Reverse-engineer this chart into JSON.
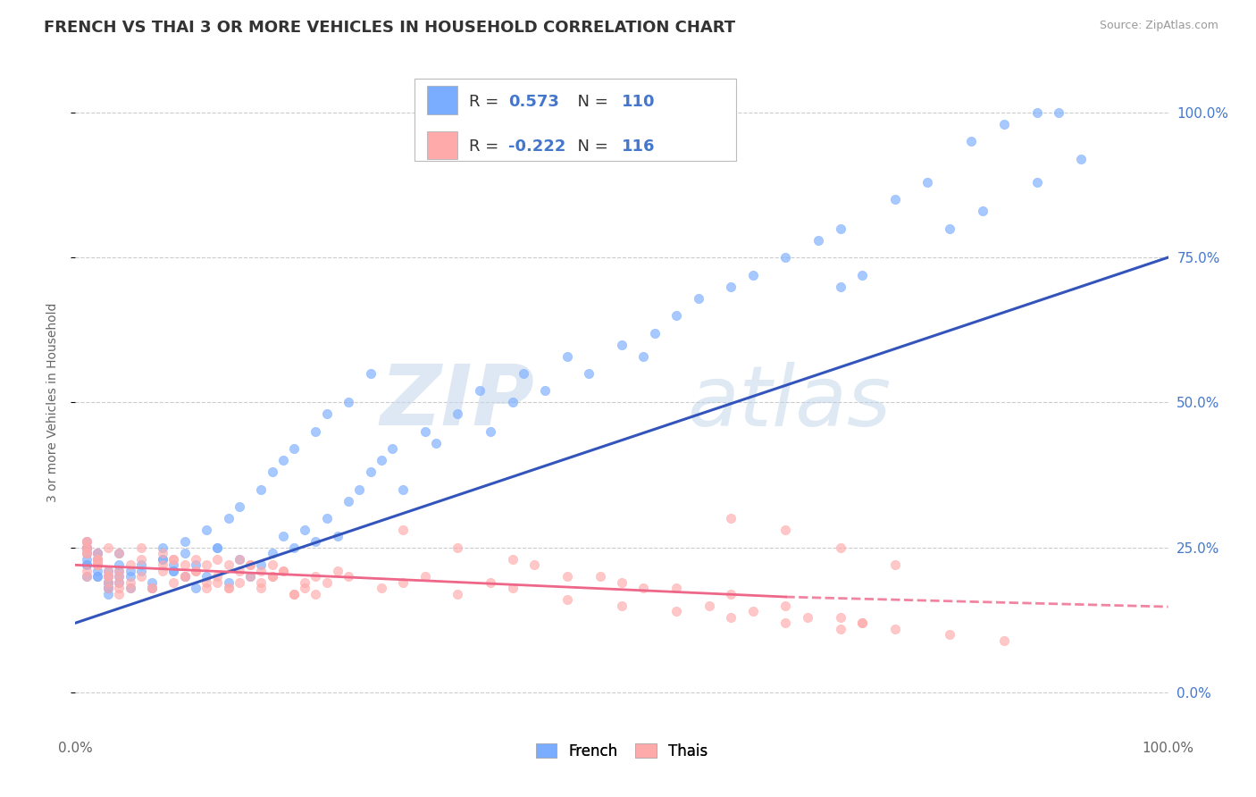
{
  "title": "FRENCH VS THAI 3 OR MORE VEHICLES IN HOUSEHOLD CORRELATION CHART",
  "source_text": "Source: ZipAtlas.com",
  "ylabel": "3 or more Vehicles in Household",
  "xlim": [
    0.0,
    1.0
  ],
  "ylim": [
    -0.07,
    1.07
  ],
  "french_R": 0.573,
  "french_N": 110,
  "thai_R": -0.222,
  "thai_N": 116,
  "french_color": "#7aadff",
  "thai_color": "#ffaaaa",
  "french_line_color": "#3355bb",
  "thai_line_color": "#ee6688",
  "legend_label_french": "French",
  "legend_label_thai": "Thais",
  "watermark_zip": "ZIP",
  "watermark_atlas": "atlas",
  "title_fontsize": 13,
  "axis_label_fontsize": 10,
  "tick_fontsize": 11,
  "legend_fontsize": 13,
  "french_x": [
    0.02,
    0.01,
    0.03,
    0.01,
    0.02,
    0.04,
    0.01,
    0.02,
    0.03,
    0.01,
    0.02,
    0.01,
    0.03,
    0.04,
    0.02,
    0.01,
    0.03,
    0.02,
    0.04,
    0.01,
    0.03,
    0.05,
    0.02,
    0.01,
    0.04,
    0.03,
    0.02,
    0.05,
    0.01,
    0.03,
    0.06,
    0.07,
    0.08,
    0.05,
    0.06,
    0.04,
    0.07,
    0.08,
    0.09,
    0.1,
    0.11,
    0.08,
    0.09,
    0.1,
    0.12,
    0.11,
    0.13,
    0.14,
    0.1,
    0.09,
    0.15,
    0.16,
    0.12,
    0.13,
    0.17,
    0.14,
    0.18,
    0.19,
    0.15,
    0.2,
    0.21,
    0.17,
    0.22,
    0.18,
    0.23,
    0.24,
    0.19,
    0.25,
    0.2,
    0.26,
    0.27,
    0.22,
    0.28,
    0.23,
    0.29,
    0.3,
    0.32,
    0.25,
    0.33,
    0.27,
    0.35,
    0.37,
    0.38,
    0.4,
    0.41,
    0.43,
    0.45,
    0.47,
    0.5,
    0.52,
    0.53,
    0.55,
    0.57,
    0.6,
    0.62,
    0.65,
    0.68,
    0.7,
    0.75,
    0.78,
    0.82,
    0.85,
    0.88,
    0.9,
    0.7,
    0.72,
    0.8,
    0.83,
    0.88,
    0.92
  ],
  "french_y": [
    0.2,
    0.22,
    0.18,
    0.25,
    0.21,
    0.19,
    0.23,
    0.24,
    0.17,
    0.26,
    0.2,
    0.22,
    0.18,
    0.21,
    0.23,
    0.25,
    0.19,
    0.22,
    0.2,
    0.24,
    0.21,
    0.18,
    0.23,
    0.2,
    0.22,
    0.19,
    0.24,
    0.21,
    0.25,
    0.2,
    0.22,
    0.18,
    0.23,
    0.2,
    0.21,
    0.24,
    0.19,
    0.25,
    0.22,
    0.2,
    0.18,
    0.23,
    0.21,
    0.24,
    0.2,
    0.22,
    0.25,
    0.19,
    0.26,
    0.21,
    0.23,
    0.2,
    0.28,
    0.25,
    0.22,
    0.3,
    0.24,
    0.27,
    0.32,
    0.25,
    0.28,
    0.35,
    0.26,
    0.38,
    0.3,
    0.27,
    0.4,
    0.33,
    0.42,
    0.35,
    0.38,
    0.45,
    0.4,
    0.48,
    0.42,
    0.35,
    0.45,
    0.5,
    0.43,
    0.55,
    0.48,
    0.52,
    0.45,
    0.5,
    0.55,
    0.52,
    0.58,
    0.55,
    0.6,
    0.58,
    0.62,
    0.65,
    0.68,
    0.7,
    0.72,
    0.75,
    0.78,
    0.8,
    0.85,
    0.88,
    0.95,
    0.98,
    1.0,
    1.0,
    0.7,
    0.72,
    0.8,
    0.83,
    0.88,
    0.92
  ],
  "thai_x": [
    0.01,
    0.02,
    0.01,
    0.03,
    0.02,
    0.01,
    0.04,
    0.02,
    0.03,
    0.01,
    0.02,
    0.04,
    0.01,
    0.03,
    0.02,
    0.05,
    0.01,
    0.04,
    0.02,
    0.03,
    0.01,
    0.06,
    0.02,
    0.04,
    0.03,
    0.01,
    0.05,
    0.02,
    0.04,
    0.03,
    0.07,
    0.06,
    0.08,
    0.05,
    0.09,
    0.04,
    0.1,
    0.07,
    0.08,
    0.11,
    0.09,
    0.06,
    0.12,
    0.1,
    0.08,
    0.13,
    0.11,
    0.09,
    0.14,
    0.12,
    0.1,
    0.15,
    0.13,
    0.11,
    0.16,
    0.14,
    0.12,
    0.17,
    0.15,
    0.13,
    0.18,
    0.16,
    0.14,
    0.19,
    0.17,
    0.15,
    0.2,
    0.18,
    0.16,
    0.21,
    0.19,
    0.17,
    0.22,
    0.2,
    0.18,
    0.23,
    0.24,
    0.21,
    0.25,
    0.22,
    0.3,
    0.28,
    0.32,
    0.35,
    0.38,
    0.4,
    0.45,
    0.5,
    0.55,
    0.6,
    0.65,
    0.7,
    0.42,
    0.48,
    0.52,
    0.58,
    0.62,
    0.67,
    0.72,
    0.35,
    0.4,
    0.3,
    0.45,
    0.55,
    0.6,
    0.5,
    0.65,
    0.7,
    0.72,
    0.75,
    0.8,
    0.85,
    0.6,
    0.65,
    0.7,
    0.75
  ],
  "thai_y": [
    0.2,
    0.22,
    0.25,
    0.18,
    0.23,
    0.21,
    0.19,
    0.24,
    0.2,
    0.26,
    0.22,
    0.17,
    0.25,
    0.2,
    0.23,
    0.18,
    0.24,
    0.21,
    0.22,
    0.19,
    0.26,
    0.2,
    0.23,
    0.18,
    0.21,
    0.24,
    0.19,
    0.22,
    0.2,
    0.25,
    0.18,
    0.23,
    0.21,
    0.22,
    0.19,
    0.24,
    0.2,
    0.18,
    0.22,
    0.21,
    0.23,
    0.25,
    0.19,
    0.22,
    0.24,
    0.2,
    0.21,
    0.23,
    0.18,
    0.22,
    0.2,
    0.21,
    0.19,
    0.23,
    0.2,
    0.22,
    0.18,
    0.21,
    0.19,
    0.23,
    0.2,
    0.22,
    0.18,
    0.21,
    0.19,
    0.23,
    0.17,
    0.2,
    0.22,
    0.19,
    0.21,
    0.18,
    0.2,
    0.17,
    0.22,
    0.19,
    0.21,
    0.18,
    0.2,
    0.17,
    0.19,
    0.18,
    0.2,
    0.17,
    0.19,
    0.18,
    0.16,
    0.15,
    0.14,
    0.13,
    0.12,
    0.11,
    0.22,
    0.2,
    0.18,
    0.15,
    0.14,
    0.13,
    0.12,
    0.25,
    0.23,
    0.28,
    0.2,
    0.18,
    0.17,
    0.19,
    0.15,
    0.13,
    0.12,
    0.11,
    0.1,
    0.09,
    0.3,
    0.28,
    0.25,
    0.22
  ]
}
